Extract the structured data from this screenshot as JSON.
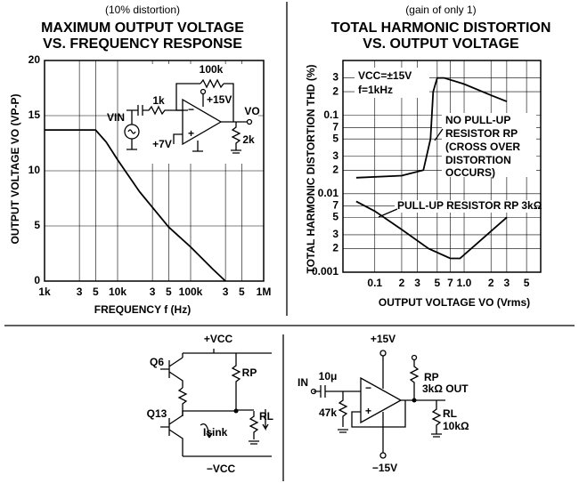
{
  "chart_data": [
    {
      "type": "line",
      "subtitle": "(10% distortion)",
      "title": [
        "MAXIMUM OUTPUT VOLTAGE",
        "VS. FREQUENCY RESPONSE"
      ],
      "y_label": "OUTPUT VOLTAGE  VO (VP-P)",
      "x_label": "FREQUENCY  f (Hz)",
      "xlog": true,
      "xlim": [
        1000,
        1000000
      ],
      "ylim": [
        0,
        20
      ],
      "grid": true,
      "xticks": [
        {
          "value": 1000,
          "label": "1k"
        },
        {
          "value": 3000,
          "label": "3"
        },
        {
          "value": 5000,
          "label": "5"
        },
        {
          "value": 10000,
          "label": "10k"
        },
        {
          "value": 30000,
          "label": "3"
        },
        {
          "value": 50000,
          "label": "5"
        },
        {
          "value": 100000,
          "label": "100k"
        },
        {
          "value": 300000,
          "label": "3"
        },
        {
          "value": 500000,
          "label": "5"
        },
        {
          "value": 1000000,
          "label": "1M"
        }
      ],
      "yticks": [
        0,
        5,
        10,
        15,
        20
      ],
      "series": [
        {
          "color": "#000000",
          "x": [
            1000,
            5000,
            7000,
            10000,
            20000,
            50000,
            100000,
            200000,
            300000
          ],
          "values": [
            13.7,
            13.7,
            12.6,
            11,
            8.1,
            4.9,
            3.1,
            1.1,
            0
          ]
        }
      ],
      "annotations": {
        "r_fb": "100k",
        "vplus": "+15V",
        "r_in": "1k",
        "vin": "VIN",
        "vo": "VO",
        "bias": "+7V",
        "r_load": "2k"
      }
    },
    {
      "type": "line",
      "subtitle": "(gain of only 1)",
      "title": [
        "TOTAL HARMONIC DISTORTION",
        "VS. OUTPUT VOLTAGE"
      ],
      "y_label": "TOTAL HARMONIC DISTORTION  THD (%)",
      "x_label": "OUTPUT VOLTAGE  VO (Vrms)",
      "xlog": true,
      "ylog": true,
      "xlim": [
        0.044,
        7.2
      ],
      "ylim": [
        0.001,
        0.5
      ],
      "grid": true,
      "xticks": [
        0.1,
        {
          "value": 0.2,
          "label": "2"
        },
        {
          "value": 0.3,
          "label": "3"
        },
        {
          "value": 0.5,
          "label": "5"
        },
        {
          "value": 0.7,
          "label": "7"
        },
        {
          "value": 1,
          "label": "1.0"
        },
        2,
        3,
        5
      ],
      "yticks": [
        0.001,
        {
          "value": 0.002,
          "label": "2"
        },
        {
          "value": 0.003,
          "label": "3"
        },
        {
          "value": 0.005,
          "label": "5"
        },
        {
          "value": 0.007,
          "label": "7"
        },
        0.01,
        {
          "value": 0.02,
          "label": "2"
        },
        {
          "value": 0.03,
          "label": "3"
        },
        {
          "value": 0.05,
          "label": "5"
        },
        {
          "value": 0.07,
          "label": "7"
        },
        0.1,
        {
          "value": 0.2,
          "label": "2"
        },
        {
          "value": 0.3,
          "label": "3"
        }
      ],
      "series": [
        {
          "color": "#000000",
          "x": [
            0.062,
            0.2,
            0.35,
            0.42,
            0.45,
            0.5,
            0.6,
            1.0,
            2.0,
            3.0
          ],
          "values": [
            0.016,
            0.017,
            0.02,
            0.05,
            0.2,
            0.3,
            0.3,
            0.25,
            0.18,
            0.15
          ]
        },
        {
          "color": "#000000",
          "x": [
            0.062,
            0.1,
            0.2,
            0.4,
            0.7,
            0.9,
            1.5,
            3.0
          ],
          "values": [
            0.008,
            0.006,
            0.0035,
            0.002,
            0.0015,
            0.0015,
            0.0025,
            0.005
          ]
        }
      ],
      "annotations": {
        "vcc": "VCC=±15V",
        "f": "f=1kHz",
        "no_pullup": [
          "NO PULL-UP",
          "RESISTOR RP",
          "(CROSS OVER",
          "DISTORTION",
          "OCCURS)"
        ],
        "pullup": "PULL-UP RESISTOR RP 3kΩ"
      }
    }
  ],
  "circuit_left": {
    "vcc": "+VCC",
    "rp": "RP",
    "q6": "Q6",
    "q13": "Q13",
    "rl": "RL",
    "isink": "Isink",
    "vee": "−VCC"
  },
  "circuit_right": {
    "vpos": "+15V",
    "in": "IN",
    "cap": "10μ",
    "rp": "RP",
    "rp_val": "3kΩ OUT",
    "r47": "47k",
    "rl": "RL",
    "rl_val": "10kΩ",
    "vneg": "−15V"
  }
}
